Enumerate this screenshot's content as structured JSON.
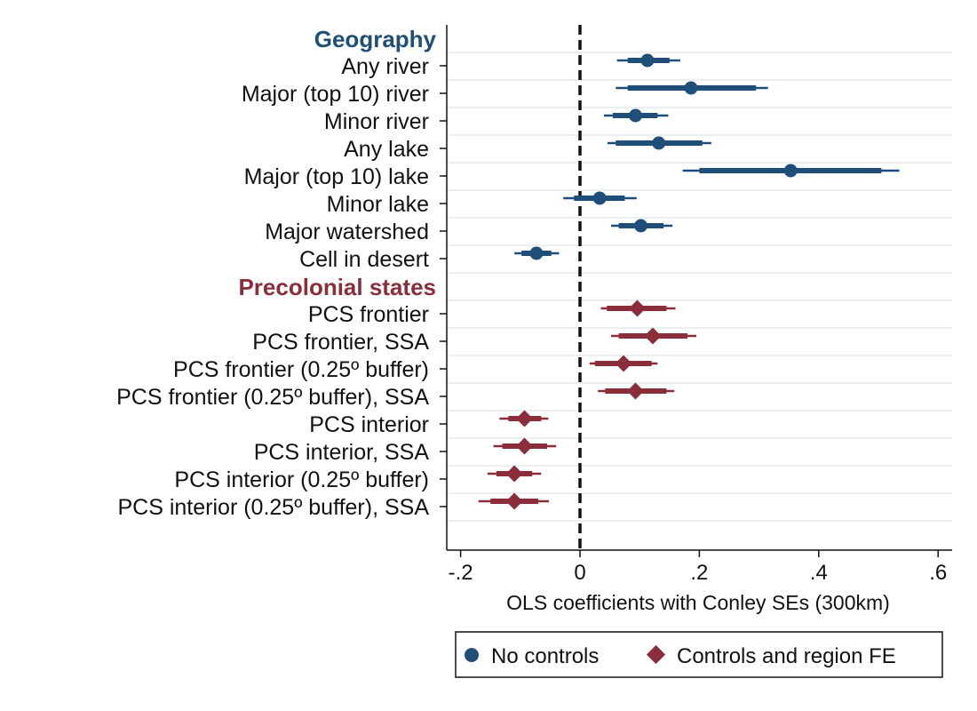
{
  "chart_data": {
    "type": "scatter",
    "subtype": "coefficient-plot",
    "title": "",
    "xlabel": "OLS coefficients with Conley SEs (300km)",
    "ylabel": "",
    "xlim": [
      -0.2,
      0.62
    ],
    "xticks": [
      -0.2,
      0,
      0.2,
      0.4,
      0.6
    ],
    "xtick_labels": [
      "-.2",
      "0",
      ".2",
      ".4",
      ".6"
    ],
    "reference_line": 0,
    "grid": "horizontal",
    "legend_position": "bottom",
    "series": [
      {
        "name": "No controls",
        "marker": "circle",
        "color": "#1f4e79"
      },
      {
        "name": "Controls and region FE",
        "marker": "diamond",
        "color": "#8b2e3c"
      }
    ],
    "groups": [
      {
        "label": "Geography",
        "color": "#1f4e79",
        "series": "No controls",
        "items": [
          {
            "label": "Any river",
            "estimate": 0.113,
            "ci90": [
              0.08,
              0.15
            ],
            "ci95": [
              0.062,
              0.168
            ]
          },
          {
            "label": "Major (top 10) river",
            "estimate": 0.186,
            "ci90": [
              0.08,
              0.295
            ],
            "ci95": [
              0.06,
              0.315
            ]
          },
          {
            "label": "Minor river",
            "estimate": 0.093,
            "ci90": [
              0.055,
              0.13
            ],
            "ci95": [
              0.04,
              0.148
            ]
          },
          {
            "label": "Any lake",
            "estimate": 0.132,
            "ci90": [
              0.06,
              0.205
            ],
            "ci95": [
              0.046,
              0.22
            ]
          },
          {
            "label": "Major (top 10) lake",
            "estimate": 0.353,
            "ci90": [
              0.2,
              0.505
            ],
            "ci95": [
              0.172,
              0.535
            ]
          },
          {
            "label": "Minor lake",
            "estimate": 0.033,
            "ci90": [
              -0.01,
              0.075
            ],
            "ci95": [
              -0.028,
              0.095
            ]
          },
          {
            "label": "Major watershed",
            "estimate": 0.102,
            "ci90": [
              0.065,
              0.14
            ],
            "ci95": [
              0.052,
              0.155
            ]
          },
          {
            "label": "Cell in desert",
            "estimate": -0.073,
            "ci90": [
              -0.098,
              -0.048
            ],
            "ci95": [
              -0.11,
              -0.035
            ]
          }
        ]
      },
      {
        "label": "Precolonial states",
        "color": "#8b2e3c",
        "series": "Controls and region FE",
        "items": [
          {
            "label": "PCS frontier",
            "estimate": 0.096,
            "ci90": [
              0.045,
              0.145
            ],
            "ci95": [
              0.035,
              0.16
            ]
          },
          {
            "label": "PCS frontier, SSA",
            "estimate": 0.122,
            "ci90": [
              0.065,
              0.18
            ],
            "ci95": [
              0.052,
              0.195
            ]
          },
          {
            "label": "PCS frontier (0.25º buffer)",
            "estimate": 0.073,
            "ci90": [
              0.025,
              0.12
            ],
            "ci95": [
              0.016,
              0.13
            ]
          },
          {
            "label": "PCS frontier (0.25º buffer), SSA",
            "estimate": 0.093,
            "ci90": [
              0.042,
              0.145
            ],
            "ci95": [
              0.03,
              0.158
            ]
          },
          {
            "label": "PCS interior",
            "estimate": -0.093,
            "ci90": [
              -0.12,
              -0.065
            ],
            "ci95": [
              -0.135,
              -0.053
            ]
          },
          {
            "label": "PCS interior, SSA",
            "estimate": -0.093,
            "ci90": [
              -0.13,
              -0.055
            ],
            "ci95": [
              -0.145,
              -0.04
            ]
          },
          {
            "label": "PCS interior (0.25º buffer)",
            "estimate": -0.11,
            "ci90": [
              -0.14,
              -0.08
            ],
            "ci95": [
              -0.155,
              -0.065
            ]
          },
          {
            "label": "PCS interior (0.25º buffer), SSA",
            "estimate": -0.11,
            "ci90": [
              -0.15,
              -0.07
            ],
            "ci95": [
              -0.17,
              -0.052
            ]
          }
        ]
      }
    ]
  }
}
